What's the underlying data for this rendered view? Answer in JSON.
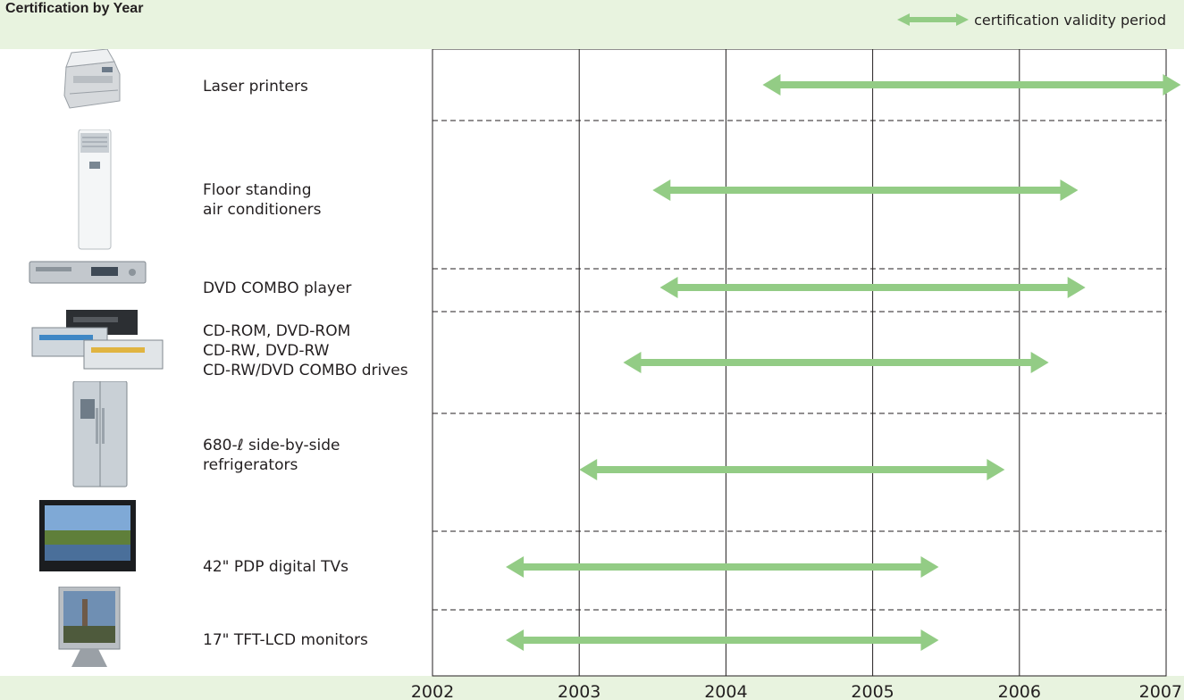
{
  "chart_data": {
    "type": "range-bar",
    "title": "Certification by Year",
    "legend": {
      "label": "certification validity period",
      "placement": "top-right"
    },
    "x_ticks": [
      "2002",
      "2003",
      "2004",
      "2005",
      "2006",
      "2007"
    ],
    "xlim": [
      2002,
      2007
    ],
    "grid": true,
    "colors": {
      "arrow": "#93cc85",
      "background": "#e8f3df",
      "grid": "#231f20"
    },
    "rows": [
      {
        "label": "Laser printers",
        "icon": "laser-printer-icon",
        "start": 2004.25,
        "end": 2007.1
      },
      {
        "label": "Floor standing\nair conditioners",
        "icon": "air-conditioner-icon",
        "start": 2003.5,
        "end": 2006.4
      },
      {
        "label": "DVD COMBO player",
        "icon": "dvd-player-icon",
        "start": 2003.55,
        "end": 2006.45
      },
      {
        "label": "CD-ROM, DVD-ROM\nCD-RW, DVD-RW\nCD-RW/DVD COMBO drives",
        "icon": "optical-drives-icon",
        "start": 2003.3,
        "end": 2006.2
      },
      {
        "label": "680-ℓ side-by-side\nrefrigerators",
        "icon": "refrigerator-icon",
        "start": 2003.0,
        "end": 2005.9
      },
      {
        "label": "42\" PDP digital TVs",
        "icon": "plasma-tv-icon",
        "start": 2002.5,
        "end": 2005.45
      },
      {
        "label": "17\" TFT-LCD monitors",
        "icon": "lcd-monitor-icon",
        "start": 2002.5,
        "end": 2005.45
      }
    ]
  }
}
